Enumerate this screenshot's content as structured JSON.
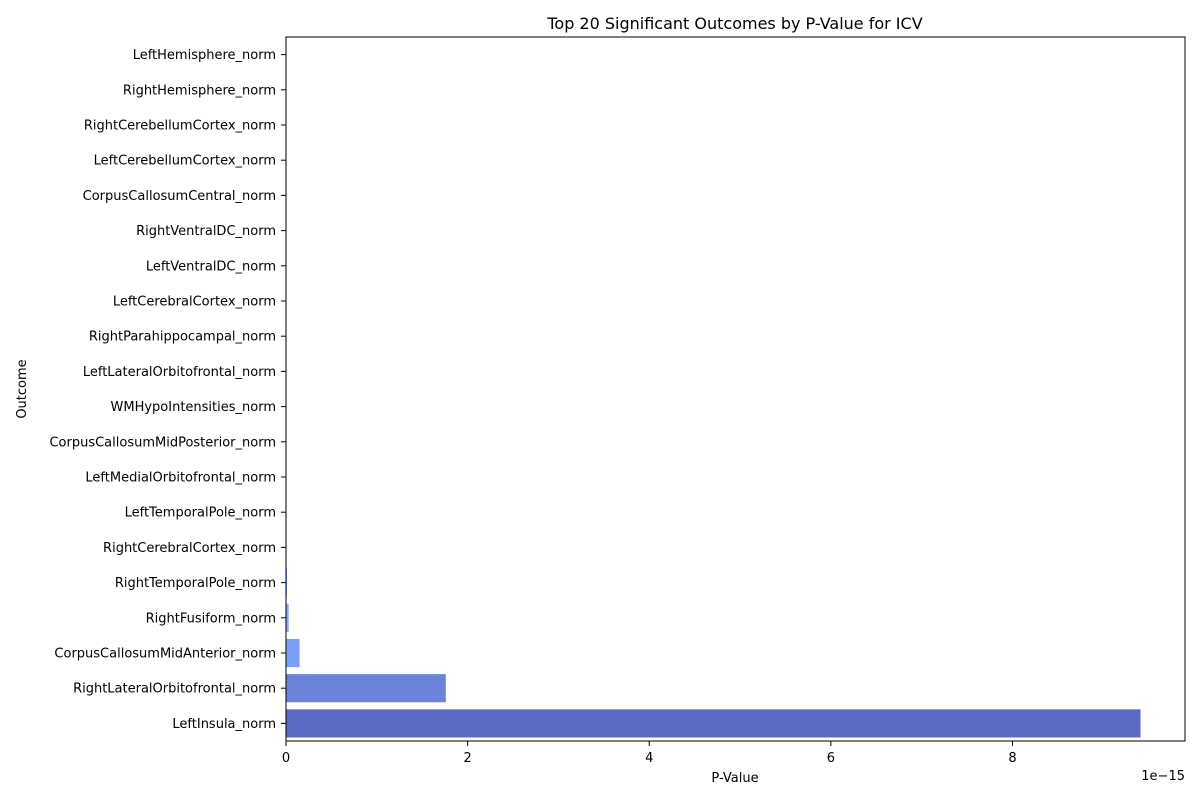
{
  "chart_data": {
    "type": "bar",
    "orientation": "horizontal",
    "title": "Top 20 Significant Outcomes by P-Value for ICV",
    "xlabel": "P-Value",
    "ylabel": "Outcome",
    "x_scale_label": "1e−15",
    "xlim": [
      0,
      9.9
    ],
    "xticks": [
      0,
      2,
      4,
      6,
      8
    ],
    "xtick_labels": [
      "0",
      "2",
      "4",
      "6",
      "8"
    ],
    "grid": false,
    "categories": [
      "LeftHemisphere_norm",
      "RightHemisphere_norm",
      "RightCerebellumCortex_norm",
      "LeftCerebellumCortex_norm",
      "CorpusCallosumCentral_norm",
      "RightVentralDC_norm",
      "LeftVentralDC_norm",
      "LeftCerebralCortex_norm",
      "RightParahippocampal_norm",
      "LeftLateralOrbitofrontal_norm",
      "WMHypoIntensities_norm",
      "CorpusCallosumMidPosterior_norm",
      "LeftMedialOrbitofrontal_norm",
      "LeftTemporalPole_norm",
      "RightCerebralCortex_norm",
      "RightTemporalPole_norm",
      "RightFusiform_norm",
      "CorpusCallosumMidAnterior_norm",
      "RightLateralOrbitofrontal_norm",
      "LeftInsula_norm"
    ],
    "values": [
      0,
      0,
      0,
      0,
      0,
      0,
      0,
      0,
      0,
      0,
      0,
      0,
      0.001,
      0.002,
      0.004,
      0.01,
      0.03,
      0.15,
      1.76,
      9.41
    ],
    "colors": [
      "#c5d6f2",
      "#c1d4f4",
      "#bcd2f6",
      "#b7cff8",
      "#b2ccfa",
      "#acc8fc",
      "#a7c5fd",
      "#a1c0ff",
      "#9bbcff",
      "#95b7fe",
      "#8fb1fe",
      "#89acfd",
      "#84a7fc",
      "#7ea1fa",
      "#799bf8",
      "#7396f5",
      "#8aa8fc",
      "#7b9ff9",
      "#6b83d8",
      "#5b6bc4"
    ]
  }
}
